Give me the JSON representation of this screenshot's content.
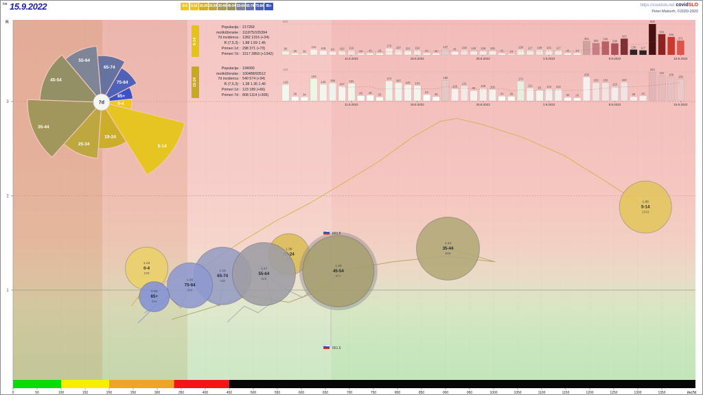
{
  "header": {
    "date_prefix": "čet",
    "date": "15.9.2022",
    "site_url": "https://covidslo.net",
    "brand_covid": "covid",
    "brand_slo": "SLO",
    "credit": "Peter Malovrh, ©2020-2022",
    "age_buttons": [
      {
        "label": "0-4",
        "bg": "#f2c71c"
      },
      {
        "label": "5-14",
        "bg": "#e9c51e"
      },
      {
        "label": "15-24",
        "bg": "#cfb02a"
      },
      {
        "label": "25-34",
        "bg": "#bca73c"
      },
      {
        "label": "35-44",
        "bg": "#a99c4e"
      },
      {
        "label": "45-54",
        "bg": "#969160"
      },
      {
        "label": "55-64",
        "bg": "#7f8494"
      },
      {
        "label": "65-74",
        "bg": "#6472aa"
      },
      {
        "label": "75-84",
        "bg": "#4c60bd"
      },
      {
        "label": "85+",
        "bg": "#3a51c7"
      }
    ]
  },
  "panels": [
    {
      "tag": "5-14",
      "tag_bg": "#e5c313",
      "rows": [
        [
          "Populacija :",
          "217269"
        ],
        [
          "moški/ženske :",
          "111875/105394"
        ],
        [
          "7d incidenca :",
          "1282 1316 (+34)"
        ],
        [
          "R (7,5,3) :",
          "1.88 1.69 1.45"
        ],
        [
          "Primeri 1d :",
          "298 371 (+73)"
        ],
        [
          "Primeri 7d :",
          "1517 2859 (+1342)"
        ]
      ]
    },
    {
      "tag": "15-24",
      "tag_bg": "#c8a81d",
      "rows": [
        [
          "Populacija :",
          "194000"
        ],
        [
          "moški/ženske :",
          "100488/93512"
        ],
        [
          "7d incidenca :",
          "540 574 (+34)"
        ],
        [
          "R (7,5,3) :",
          "1.38 1.35 1.40"
        ],
        [
          "Primeri 1d :",
          "123 189 (+66)"
        ],
        [
          "Primeri 7d :",
          "808 1114 (+306)"
        ]
      ]
    }
  ],
  "rose": {
    "center_label": "7d",
    "wedges": [
      {
        "label": "55-64",
        "color": "#7e8596",
        "start": -40,
        "end": -5,
        "r": 82
      },
      {
        "label": "65-74",
        "color": "#66729f",
        "start": -5,
        "end": 30,
        "r": 68
      },
      {
        "label": "75-84",
        "color": "#4f62b8",
        "start": 30,
        "end": 62,
        "r": 58
      },
      {
        "label": "85+",
        "color": "#3b52c5",
        "start": 62,
        "end": 84,
        "r": 46
      },
      {
        "label": "0-4",
        "color": "#eec81d",
        "start": 84,
        "end": 104,
        "r": 44
      },
      {
        "label": "5-14",
        "color": "#e6c522",
        "start": 104,
        "end": 148,
        "r": 125
      },
      {
        "label": "15-24",
        "color": "#cdae2b",
        "start": 148,
        "end": 184,
        "r": 68
      },
      {
        "label": "25-34",
        "color": "#bda73e",
        "start": 184,
        "end": 222,
        "r": 82
      },
      {
        "label": "35-44",
        "color": "#a1975a",
        "start": 222,
        "end": 272,
        "r": 108
      },
      {
        "label": "45-54",
        "color": "#939163",
        "start": 272,
        "end": 320,
        "r": 90
      }
    ]
  },
  "chart_data": [
    {
      "type": "bar",
      "group": "5-14",
      "max_label": "805",
      "values": [
        96,
        39,
        30,
        141,
        109,
        84,
        102,
        116,
        33,
        43,
        43,
        170,
        127,
        111,
        119,
        44,
        40,
        147,
        91,
        128,
        105,
        108,
        106,
        41,
        24,
        136,
        117,
        128,
        121,
        117,
        43,
        44,
        361,
        305,
        349,
        298,
        423,
        136,
        117,
        805,
        541,
        466,
        371
      ],
      "colors": [
        "#eaf3e3",
        "#fbfaf6",
        "#fbfaf6",
        "#f6f2ea",
        "#f8f3ee",
        "#f7efe8",
        "#f5e9e4",
        "#f3e5e1",
        "#fbfaf6",
        "#fbfaf6",
        "#fbfaf6",
        "#f5ece7",
        "#f4e7e2",
        "#f6efe9",
        "#f5ebe6",
        "#fbfaf6",
        "#fbfaf6",
        "#e2cdc9",
        "#f6f1ec",
        "#f2e3df",
        "#f5ece7",
        "#f5ece7",
        "#f5ece7",
        "#fbfaf6",
        "#fbfaf6",
        "#eaf2e3",
        "#f2ece4",
        "#f1e7e0",
        "#f2e9e2",
        "#f2ece4",
        "#fbfaf6",
        "#fbfaf6",
        "#cfa1a1",
        "#c87f84",
        "#b86264",
        "#ad5156",
        "#7e3032",
        "#2e2326",
        "#2e2326",
        "#471113",
        "#8c2320",
        "#cc382e",
        "#de544a"
      ],
      "date_ticks": [
        {
          "i": 7,
          "label": "11.8.2022"
        },
        {
          "i": 14,
          "label": "18.8.2022"
        },
        {
          "i": 21,
          "label": "25.8.2022"
        },
        {
          "i": 28,
          "label": "1.9.2022"
        },
        {
          "i": 35,
          "label": "8.9.2022"
        },
        {
          "i": 42,
          "label": "15.9.2022"
        }
      ]
    },
    {
      "type": "bar",
      "group": "15-24",
      "max_label": "253",
      "values": [
        143,
        38,
        34,
        193,
        145,
        156,
        127,
        152,
        45,
        49,
        33,
        174,
        157,
        140,
        134,
        54,
        36,
        180,
        105,
        131,
        89,
        108,
        100,
        41,
        39,
        172,
        111,
        93,
        103,
        102,
        30,
        26,
        209,
        159,
        159,
        123,
        163,
        36,
        43,
        253,
        222,
        208,
        189
      ],
      "colors": [
        "#f1f7ec",
        "#fcfcf8",
        "#fcfcf8",
        "#edf5e5",
        "#f3f6ee",
        "#eef3eb",
        "#f6f4ee",
        "#f1f4ea",
        "#fcfcf8",
        "#fcfcf8",
        "#fcfcf8",
        "#eef4e9",
        "#f0f4ec",
        "#f3f4ee",
        "#f4f4ee",
        "#fcfcf8",
        "#fcfcf8",
        "#e3c9c6",
        "#f7f0ec",
        "#f3e9e6",
        "#f8f2ef",
        "#f5efec",
        "#f6f1ee",
        "#fcfcf8",
        "#fcfcf8",
        "#e6f0e0",
        "#f3f3ef",
        "#f5f5f0",
        "#f3efec",
        "#f3efec",
        "#fcfcf8",
        "#fcfcf8",
        "#f5f1f1",
        "#f1e5e4",
        "#f1e5e4",
        "#f3ecea",
        "#f0e3e1",
        "#f7efee",
        "#f7efee",
        "#e2b6b6",
        "#e5bcbc",
        "#e7c1c1",
        "#ebc9c9"
      ],
      "date_ticks": [
        {
          "i": 7,
          "label": "11.8.2022"
        },
        {
          "i": 14,
          "label": "18.8.2022"
        },
        {
          "i": 21,
          "label": "25.8.2022"
        },
        {
          "i": 28,
          "label": "1.9.2022"
        },
        {
          "i": 35,
          "label": "8.9.2022"
        },
        {
          "i": 42,
          "label": "15.9.2022"
        }
      ]
    },
    {
      "type": "scatter",
      "x_axis": {
        "label": "Inc7d",
        "min": 0,
        "max": 1420,
        "tick_step": 50,
        "tick_max": 1350,
        "zones": [
          {
            "from": 0,
            "to": 100,
            "color": "#08dc08"
          },
          {
            "from": 100,
            "to": 200,
            "color": "#f8ee00"
          },
          {
            "from": 200,
            "to": 335,
            "color": "#f0a427"
          },
          {
            "from": 335,
            "to": 450,
            "color": "#f31515"
          },
          {
            "from": 450,
            "to": 1420,
            "color": "#070707"
          }
        ]
      },
      "y_axis": {
        "label": "R",
        "ticks": [
          1,
          2,
          3
        ]
      },
      "bubbles": [
        {
          "group": "5-14",
          "R": "1.88",
          "inc": 1316,
          "size": 38,
          "color": "#e2c55c"
        },
        {
          "group": "35-44",
          "R": "1.44",
          "inc": 905,
          "size": 46,
          "color": "#b2a878"
        },
        {
          "group": "0-4",
          "R": "1.23",
          "inc": 278,
          "size": 31,
          "color": "#ebd069"
        },
        {
          "group": "15-24",
          "R": "1.38",
          "inc": 574,
          "size": 30,
          "color": "#d9bc55"
        },
        {
          "group": "65-74",
          "R": "1.15",
          "inc": 436,
          "size": 42,
          "color": "#959cc0"
        },
        {
          "group": "75-84",
          "R": "1.05",
          "inc": 368,
          "size": 33,
          "color": "#8e98cf"
        },
        {
          "group": "85+",
          "R": "0.93",
          "inc": 294,
          "size": 22,
          "color": "#8292d6"
        },
        {
          "group": "55-64",
          "R": "1.17",
          "inc": 522,
          "size": 46,
          "color": "#9d9ca4"
        },
        {
          "group": "45-54",
          "R": "1.20",
          "inc": 677,
          "size": 52,
          "color": "#a79f70",
          "halo": true
        }
      ],
      "national": {
        "label": "661.5",
        "inc": 661.5
      },
      "trails": [
        {
          "color": "#cfae3a",
          "points": [
            [
              246,
              0.83
            ],
            [
              274,
              1.02
            ],
            [
              260,
              0.91
            ],
            [
              296,
              0.96
            ],
            [
              317,
              1.09
            ],
            [
              353,
              1.16
            ],
            [
              403,
              1.27
            ],
            [
              474,
              1.51
            ],
            [
              546,
              1.73
            ],
            [
              617,
              1.92
            ],
            [
              689,
              2.14
            ],
            [
              760,
              2.36
            ],
            [
              831,
              2.62
            ],
            [
              889,
              2.79
            ],
            [
              924,
              2.82
            ],
            [
              974,
              2.76
            ],
            [
              1060,
              2.62
            ],
            [
              1146,
              2.43
            ],
            [
              1231,
              2.16
            ],
            [
              1316,
              1.88
            ]
          ]
        },
        {
          "color": "#8890cc",
          "points": [
            [
              260,
              0.65
            ],
            [
              296,
              0.83
            ],
            [
              274,
              0.76
            ],
            [
              324,
              0.93
            ],
            [
              349,
              0.81
            ],
            [
              370,
              1.09
            ],
            [
              403,
              0.93
            ],
            [
              429,
              0.83
            ],
            [
              439,
              1.13
            ]
          ]
        },
        {
          "color": "#9aa0a8",
          "points": [
            [
              446,
              0.66
            ],
            [
              481,
              0.83
            ],
            [
              510,
              0.76
            ],
            [
              539,
              0.87
            ],
            [
              524,
              1.17
            ],
            [
              567,
              1.01
            ],
            [
              603,
              0.92
            ],
            [
              624,
              1.02
            ]
          ]
        },
        {
          "color": "#a89a50",
          "points": [
            [
              331,
              0.69
            ],
            [
              403,
              0.8
            ],
            [
              489,
              0.94
            ],
            [
              574,
              0.87
            ],
            [
              646,
              1.01
            ],
            [
              677,
              1.2
            ],
            [
              790,
              1.3
            ],
            [
              900,
              1.36
            ],
            [
              1003,
              1.3
            ],
            [
              950,
              1.38
            ],
            [
              905,
              1.44
            ]
          ]
        }
      ]
    }
  ]
}
